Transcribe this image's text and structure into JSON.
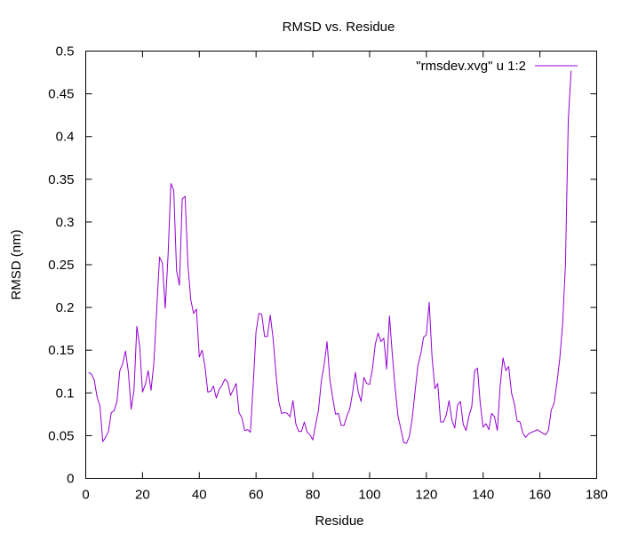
{
  "chart_data": {
    "type": "line",
    "title": "RMSD vs. Residue",
    "xlabel": "Residue",
    "ylabel": "RMSD (nm)",
    "xlim": [
      0,
      180
    ],
    "ylim": [
      0,
      0.5
    ],
    "xticks": [
      0,
      20,
      40,
      60,
      80,
      100,
      120,
      140,
      160,
      180
    ],
    "xtick_labels": [
      "0",
      "20",
      "40",
      "60",
      "80",
      "100",
      "120",
      "140",
      "160",
      "180"
    ],
    "yticks": [
      0,
      0.05,
      0.1,
      0.15,
      0.2,
      0.25,
      0.3,
      0.35,
      0.4,
      0.45,
      0.5
    ],
    "ytick_labels": [
      "0",
      "0.05",
      "0.1",
      "0.15",
      "0.2",
      "0.25",
      "0.3",
      "0.35",
      "0.4",
      "0.45",
      "0.5"
    ],
    "grid": false,
    "legend_position": "top-right",
    "series": [
      {
        "name": "\"rmsdev.xvg\" u 1:2",
        "color": "#9400d3",
        "x": [
          1,
          2,
          3,
          4,
          5,
          6,
          7,
          8,
          9,
          10,
          11,
          12,
          13,
          14,
          15,
          16,
          17,
          18,
          19,
          20,
          21,
          22,
          23,
          24,
          25,
          26,
          27,
          28,
          29,
          30,
          31,
          32,
          33,
          34,
          35,
          36,
          37,
          38,
          39,
          40,
          41,
          42,
          43,
          44,
          45,
          46,
          47,
          48,
          49,
          50,
          51,
          52,
          53,
          54,
          55,
          56,
          57,
          58,
          59,
          60,
          61,
          62,
          63,
          64,
          65,
          66,
          67,
          68,
          69,
          70,
          71,
          72,
          73,
          74,
          75,
          76,
          77,
          78,
          79,
          80,
          81,
          82,
          83,
          84,
          85,
          86,
          87,
          88,
          89,
          90,
          91,
          92,
          93,
          94,
          95,
          96,
          97,
          98,
          99,
          100,
          101,
          102,
          103,
          104,
          105,
          106,
          107,
          108,
          109,
          110,
          111,
          112,
          113,
          114,
          115,
          116,
          117,
          118,
          119,
          120,
          121,
          122,
          123,
          124,
          125,
          126,
          127,
          128,
          129,
          130,
          131,
          132,
          133,
          134,
          135,
          136,
          137,
          138,
          139,
          140,
          141,
          142,
          143,
          144,
          145,
          146,
          147,
          148,
          149,
          150,
          151,
          152,
          153,
          154,
          155,
          156,
          157,
          158,
          159,
          160,
          161,
          162,
          163,
          164,
          165,
          166,
          167,
          168,
          169,
          170,
          171
        ],
        "y": [
          0.124,
          0.122,
          0.115,
          0.095,
          0.085,
          0.043,
          0.048,
          0.055,
          0.077,
          0.079,
          0.09,
          0.126,
          0.134,
          0.149,
          0.125,
          0.081,
          0.103,
          0.178,
          0.155,
          0.101,
          0.11,
          0.126,
          0.103,
          0.135,
          0.198,
          0.259,
          0.252,
          0.199,
          0.261,
          0.345,
          0.337,
          0.243,
          0.226,
          0.327,
          0.33,
          0.25,
          0.209,
          0.193,
          0.198,
          0.142,
          0.15,
          0.131,
          0.101,
          0.102,
          0.108,
          0.094,
          0.104,
          0.109,
          0.116,
          0.113,
          0.097,
          0.104,
          0.111,
          0.077,
          0.071,
          0.056,
          0.057,
          0.054,
          0.11,
          0.172,
          0.193,
          0.192,
          0.166,
          0.166,
          0.191,
          0.164,
          0.123,
          0.09,
          0.076,
          0.077,
          0.076,
          0.072,
          0.091,
          0.064,
          0.055,
          0.055,
          0.066,
          0.054,
          0.051,
          0.045,
          0.063,
          0.08,
          0.114,
          0.133,
          0.16,
          0.116,
          0.094,
          0.075,
          0.076,
          0.062,
          0.062,
          0.073,
          0.081,
          0.1,
          0.124,
          0.101,
          0.09,
          0.118,
          0.111,
          0.11,
          0.128,
          0.157,
          0.17,
          0.16,
          0.164,
          0.128,
          0.19,
          0.145,
          0.106,
          0.073,
          0.058,
          0.042,
          0.041,
          0.049,
          0.07,
          0.101,
          0.132,
          0.145,
          0.165,
          0.168,
          0.206,
          0.142,
          0.105,
          0.111,
          0.066,
          0.066,
          0.074,
          0.091,
          0.068,
          0.059,
          0.086,
          0.09,
          0.063,
          0.056,
          0.073,
          0.084,
          0.126,
          0.129,
          0.087,
          0.06,
          0.064,
          0.057,
          0.076,
          0.072,
          0.056,
          0.108,
          0.141,
          0.126,
          0.131,
          0.1,
          0.087,
          0.067,
          0.066,
          0.053,
          0.048,
          0.052,
          0.054,
          0.055,
          0.057,
          0.055,
          0.053,
          0.051,
          0.056,
          0.08,
          0.088,
          0.112,
          0.14,
          0.18,
          0.25,
          0.42,
          0.477
        ]
      }
    ]
  }
}
